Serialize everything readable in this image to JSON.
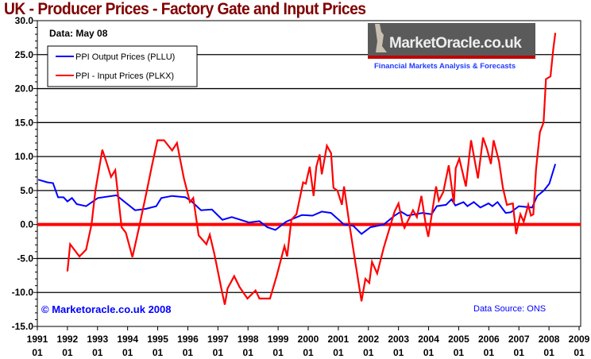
{
  "chart_data": {
    "type": "line",
    "title": "UK - Producer Prices - Factory Gate and Input Prices",
    "annotations": {
      "data_date": "Data: May 08",
      "copyright": "© Marketoracle.co.uk 2008",
      "source": "Data Source: ONS",
      "logo_text": "MarketOracle.co.uk",
      "logo_tagline": "Financial Markets Analysis & Forecasts"
    },
    "ylim": [
      -15,
      30
    ],
    "xlim": [
      1991,
      2009
    ],
    "y_ticks": [
      "30.0",
      "25.0",
      "20.0",
      "15.0",
      "10.0",
      "5.0",
      "0.0",
      "-5.0",
      "-10.0",
      "-15.0"
    ],
    "x_ticks": [
      {
        "year": "1991",
        "month": "01"
      },
      {
        "year": "1992",
        "month": "01"
      },
      {
        "year": "1993",
        "month": "01"
      },
      {
        "year": "1994",
        "month": "01"
      },
      {
        "year": "1995",
        "month": "01"
      },
      {
        "year": "1996",
        "month": "01"
      },
      {
        "year": "1997",
        "month": "01"
      },
      {
        "year": "1998",
        "month": "01"
      },
      {
        "year": "1999",
        "month": "01"
      },
      {
        "year": "2000",
        "month": "01"
      },
      {
        "year": "2001",
        "month": "01"
      },
      {
        "year": "2002",
        "month": "01"
      },
      {
        "year": "2003",
        "month": "01"
      },
      {
        "year": "2004",
        "month": "01"
      },
      {
        "year": "2005",
        "month": "01"
      },
      {
        "year": "2006",
        "month": "01"
      },
      {
        "year": "2007",
        "month": "01"
      },
      {
        "year": "2008",
        "month": "01"
      },
      {
        "year": "2009",
        "month": "01"
      }
    ],
    "grid": "horizontal",
    "zero_line_color": "#ff0000",
    "legend_placement": "top-left",
    "series": [
      {
        "name": "PPI Output Prices (PLLU)",
        "color": "#0000ff",
        "points": [
          [
            1991.03,
            6.6
          ],
          [
            1991.34,
            6.2
          ],
          [
            1991.52,
            6.1
          ],
          [
            1991.69,
            4.0
          ],
          [
            1991.87,
            4.0
          ],
          [
            1992.0,
            3.4
          ],
          [
            1992.15,
            3.9
          ],
          [
            1992.31,
            3.0
          ],
          [
            1992.62,
            2.7
          ],
          [
            1993.01,
            3.9
          ],
          [
            1993.63,
            4.3
          ],
          [
            1993.85,
            3.5
          ],
          [
            1994.25,
            2.1
          ],
          [
            1994.6,
            2.3
          ],
          [
            1994.95,
            2.7
          ],
          [
            1995.12,
            3.9
          ],
          [
            1995.48,
            4.2
          ],
          [
            1995.92,
            4.0
          ],
          [
            1996.1,
            3.5
          ],
          [
            1996.44,
            2.1
          ],
          [
            1996.8,
            2.2
          ],
          [
            1997.15,
            0.7
          ],
          [
            1997.46,
            1.1
          ],
          [
            1998.03,
            0.3
          ],
          [
            1998.38,
            0.5
          ],
          [
            1998.64,
            -0.4
          ],
          [
            1998.91,
            -0.8
          ],
          [
            1999.26,
            0.4
          ],
          [
            1999.79,
            1.4
          ],
          [
            2000.14,
            1.3
          ],
          [
            2000.45,
            1.9
          ],
          [
            2000.76,
            1.7
          ],
          [
            2001.19,
            0.0
          ],
          [
            2001.5,
            -0.2
          ],
          [
            2001.77,
            -1.4
          ],
          [
            2002.07,
            -0.4
          ],
          [
            2002.51,
            0.0
          ],
          [
            2002.87,
            1.3
          ],
          [
            2003.08,
            1.9
          ],
          [
            2003.3,
            1.3
          ],
          [
            2003.79,
            1.7
          ],
          [
            2004.1,
            1.5
          ],
          [
            2004.27,
            2.7
          ],
          [
            2004.58,
            2.9
          ],
          [
            2004.76,
            3.7
          ],
          [
            2004.89,
            2.8
          ],
          [
            2005.16,
            3.3
          ],
          [
            2005.29,
            2.7
          ],
          [
            2005.5,
            3.3
          ],
          [
            2005.72,
            2.5
          ],
          [
            2005.99,
            3.1
          ],
          [
            2006.12,
            2.7
          ],
          [
            2006.29,
            3.3
          ],
          [
            2006.56,
            1.7
          ],
          [
            2006.73,
            1.8
          ],
          [
            2007.0,
            2.7
          ],
          [
            2007.44,
            2.5
          ],
          [
            2007.61,
            4.2
          ],
          [
            2007.83,
            5.0
          ],
          [
            2008.01,
            6.0
          ],
          [
            2008.21,
            8.9
          ]
        ]
      },
      {
        "name": "PPI - Input Prices (PLKX)",
        "color": "#ff0000",
        "points": [
          [
            1992.0,
            -6.9
          ],
          [
            1992.09,
            -2.9
          ],
          [
            1992.4,
            -4.7
          ],
          [
            1992.62,
            -3.7
          ],
          [
            1992.8,
            0.0
          ],
          [
            1992.93,
            5.0
          ],
          [
            1993.16,
            11.0
          ],
          [
            1993.28,
            9.4
          ],
          [
            1993.45,
            7.0
          ],
          [
            1993.59,
            8.0
          ],
          [
            1993.8,
            -0.4
          ],
          [
            1993.94,
            -1.2
          ],
          [
            1994.16,
            -4.8
          ],
          [
            1994.38,
            -0.4
          ],
          [
            1994.64,
            5.0
          ],
          [
            1994.82,
            8.9
          ],
          [
            1994.99,
            12.4
          ],
          [
            1995.21,
            12.4
          ],
          [
            1995.48,
            10.9
          ],
          [
            1995.64,
            12.0
          ],
          [
            1995.74,
            9.7
          ],
          [
            1995.87,
            6.8
          ],
          [
            1996.07,
            3.3
          ],
          [
            1996.18,
            3.9
          ],
          [
            1996.36,
            -1.6
          ],
          [
            1996.62,
            -2.9
          ],
          [
            1996.73,
            -1.5
          ],
          [
            1996.88,
            -4.3
          ],
          [
            1997.13,
            -9.8
          ],
          [
            1997.23,
            -11.8
          ],
          [
            1997.32,
            -9.4
          ],
          [
            1997.54,
            -7.6
          ],
          [
            1997.72,
            -9.2
          ],
          [
            1997.98,
            -10.9
          ],
          [
            1998.25,
            -9.7
          ],
          [
            1998.38,
            -10.9
          ],
          [
            1998.73,
            -10.9
          ],
          [
            1998.95,
            -7.6
          ],
          [
            1999.21,
            -3.2
          ],
          [
            1999.3,
            -4.7
          ],
          [
            1999.44,
            0.7
          ],
          [
            1999.61,
            1.5
          ],
          [
            1999.83,
            6.2
          ],
          [
            1999.92,
            6.0
          ],
          [
            2000.05,
            8.5
          ],
          [
            2000.18,
            4.2
          ],
          [
            2000.27,
            8.5
          ],
          [
            2000.38,
            10.3
          ],
          [
            2000.45,
            7.4
          ],
          [
            2000.62,
            11.6
          ],
          [
            2000.76,
            10.5
          ],
          [
            2000.84,
            5.4
          ],
          [
            2000.97,
            5.0
          ],
          [
            2001.12,
            2.9
          ],
          [
            2001.19,
            5.6
          ],
          [
            2001.37,
            0.0
          ],
          [
            2001.55,
            -5.1
          ],
          [
            2001.77,
            -11.3
          ],
          [
            2001.9,
            -8.0
          ],
          [
            2002.03,
            -8.6
          ],
          [
            2002.12,
            -5.5
          ],
          [
            2002.29,
            -7.2
          ],
          [
            2002.51,
            -3.4
          ],
          [
            2002.87,
            1.9
          ],
          [
            2003.0,
            3.1
          ],
          [
            2003.13,
            0.3
          ],
          [
            2003.2,
            -0.5
          ],
          [
            2003.48,
            2.1
          ],
          [
            2003.61,
            1.1
          ],
          [
            2003.76,
            4.2
          ],
          [
            2003.92,
            -0.4
          ],
          [
            2003.99,
            -1.8
          ],
          [
            2004.25,
            5.6
          ],
          [
            2004.34,
            3.5
          ],
          [
            2004.49,
            4.8
          ],
          [
            2004.67,
            8.7
          ],
          [
            2004.84,
            3.1
          ],
          [
            2004.9,
            8.3
          ],
          [
            2005.02,
            9.7
          ],
          [
            2005.24,
            5.6
          ],
          [
            2005.41,
            12.4
          ],
          [
            2005.64,
            6.8
          ],
          [
            2005.81,
            12.8
          ],
          [
            2005.94,
            11.1
          ],
          [
            2006.07,
            8.9
          ],
          [
            2006.16,
            12.4
          ],
          [
            2006.34,
            9.3
          ],
          [
            2006.47,
            5.4
          ],
          [
            2006.6,
            2.9
          ],
          [
            2006.8,
            3.1
          ],
          [
            2006.91,
            -1.4
          ],
          [
            2007.05,
            1.5
          ],
          [
            2007.16,
            0.4
          ],
          [
            2007.31,
            2.9
          ],
          [
            2007.4,
            1.3
          ],
          [
            2007.48,
            1.5
          ],
          [
            2007.57,
            8.1
          ],
          [
            2007.7,
            13.6
          ],
          [
            2007.82,
            15.0
          ],
          [
            2007.9,
            21.4
          ],
          [
            2008.05,
            21.8
          ],
          [
            2008.14,
            25.7
          ],
          [
            2008.21,
            28.2
          ]
        ]
      }
    ]
  }
}
